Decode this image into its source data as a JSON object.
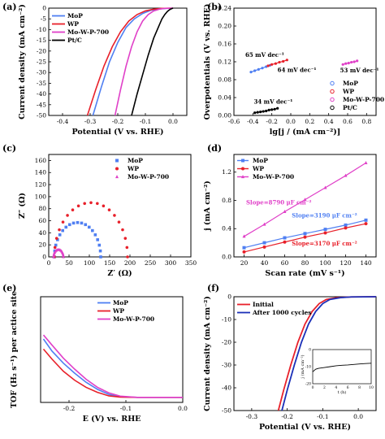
{
  "figure": {
    "panels": [
      {
        "label": "(a)"
      },
      {
        "label": "(b)"
      },
      {
        "label": "(c)"
      },
      {
        "label": "(d)"
      },
      {
        "label": "(e)"
      },
      {
        "label": "(f)"
      }
    ]
  },
  "chart_data": [
    {
      "id": "a",
      "type": "line",
      "xlabel": "Potential (V vs. RHE)",
      "ylabel": "Current density (mA cm⁻²)",
      "xlim": [
        -0.45,
        0.05
      ],
      "ylim": [
        -50,
        0
      ],
      "xticks": [
        "-0.4",
        "-0.3",
        "-0.2",
        "-0.1",
        "0.0"
      ],
      "yticks": [
        "0",
        "-5",
        "-10",
        "-15",
        "-20",
        "-25",
        "-30",
        "-35",
        "-40",
        "-45",
        "-50"
      ],
      "xtick_vals": [
        -0.4,
        -0.3,
        -0.2,
        -0.1,
        0.0
      ],
      "ytick_vals": [
        0,
        -5,
        -10,
        -15,
        -20,
        -25,
        -30,
        -35,
        -40,
        -45,
        -50
      ],
      "legend": "top-left",
      "series": [
        {
          "name": "MoP",
          "color": "#4f7ff2",
          "x": [
            -0.29,
            -0.26,
            -0.23,
            -0.2,
            -0.17,
            -0.14,
            -0.11,
            -0.08,
            -0.05,
            -0.02,
            0.0
          ],
          "y": [
            -50,
            -37,
            -25,
            -16,
            -9,
            -5,
            -2.5,
            -1,
            -0.4,
            -0.1,
            0
          ]
        },
        {
          "name": "WP",
          "color": "#e8202a",
          "x": [
            -0.31,
            -0.28,
            -0.25,
            -0.22,
            -0.19,
            -0.16,
            -0.13,
            -0.1,
            -0.07,
            -0.04,
            0.0
          ],
          "y": [
            -50,
            -38,
            -27,
            -18,
            -11,
            -6,
            -3,
            -1.3,
            -0.5,
            -0.1,
            0
          ]
        },
        {
          "name": "Mo-W-P-700",
          "color": "#e040c8",
          "x": [
            -0.21,
            -0.19,
            -0.17,
            -0.15,
            -0.13,
            -0.11,
            -0.09,
            -0.07,
            -0.05,
            -0.03,
            0.0
          ],
          "y": [
            -50,
            -38,
            -27,
            -18,
            -11,
            -6,
            -3,
            -1.3,
            -0.5,
            -0.1,
            0
          ]
        },
        {
          "name": "Pt/C",
          "color": "#000000",
          "x": [
            -0.15,
            -0.13,
            -0.11,
            -0.09,
            -0.07,
            -0.05,
            -0.04,
            -0.03,
            -0.02,
            -0.01,
            0.0
          ],
          "y": [
            -50,
            -40,
            -31,
            -22,
            -14,
            -8,
            -5,
            -3,
            -1.5,
            -0.5,
            0
          ]
        }
      ]
    },
    {
      "id": "b",
      "type": "scatter",
      "xlabel": "lg[j / (mA cm⁻²)]",
      "ylabel": "Overpotentials (V vs. RHE)",
      "xlim": [
        -0.6,
        0.9
      ],
      "ylim": [
        0.0,
        0.24
      ],
      "xticks": [
        "-0.6",
        "-0.4",
        "-0.2",
        "0.0",
        "0.2",
        "0.4",
        "0.6",
        "0.8"
      ],
      "yticks": [
        "0.00",
        "0.04",
        "0.08",
        "0.12",
        "0.16",
        "0.20",
        "0.24"
      ],
      "xtick_vals": [
        -0.6,
        -0.4,
        -0.2,
        0.0,
        0.2,
        0.4,
        0.6,
        0.8
      ],
      "ytick_vals": [
        0.0,
        0.04,
        0.08,
        0.12,
        0.16,
        0.2,
        0.24
      ],
      "legend": "right",
      "series": [
        {
          "name": "MoP",
          "color": "#4f7ff2",
          "x": [
            -0.42,
            -0.38,
            -0.34,
            -0.3,
            -0.26,
            -0.22
          ],
          "y": [
            0.097,
            0.1,
            0.103,
            0.106,
            0.109,
            0.112
          ]
        },
        {
          "name": "WP",
          "color": "#e8202a",
          "x": [
            -0.24,
            -0.2,
            -0.16,
            -0.12,
            -0.08,
            -0.04
          ],
          "y": [
            0.111,
            0.114,
            0.116,
            0.119,
            0.121,
            0.124
          ]
        },
        {
          "name": "Mo-W-P-700",
          "color": "#e040c8",
          "x": [
            0.55,
            0.58,
            0.61,
            0.64,
            0.67,
            0.7
          ],
          "y": [
            0.114,
            0.116,
            0.117,
            0.119,
            0.12,
            0.122
          ]
        },
        {
          "name": "Pt/C",
          "color": "#000000",
          "x": [
            -0.38,
            -0.35,
            -0.32,
            -0.29,
            -0.26,
            -0.23,
            -0.2,
            -0.17,
            -0.14
          ],
          "y": [
            0.006,
            0.007,
            0.008,
            0.009,
            0.01,
            0.012,
            0.013,
            0.014,
            0.016
          ]
        }
      ],
      "annotations": [
        {
          "text": "65 mV dec⁻¹",
          "x": -0.48,
          "y": 0.131
        },
        {
          "text": "64 mV dec⁻¹",
          "x": -0.14,
          "y": 0.097
        },
        {
          "text": "53 mV dec⁻¹",
          "x": 0.52,
          "y": 0.096
        },
        {
          "text": "34 mV dec⁻¹",
          "x": -0.39,
          "y": 0.026
        }
      ]
    },
    {
      "id": "c",
      "type": "scatter",
      "xlabel": "Z′ (Ω)",
      "ylabel": "Z″ (Ω)",
      "xlim": [
        0,
        350
      ],
      "ylim": [
        0,
        170
      ],
      "xticks": [
        "0",
        "50",
        "100",
        "150",
        "200",
        "250",
        "300",
        "350"
      ],
      "yticks": [
        "0",
        "20",
        "40",
        "60",
        "80",
        "100",
        "120",
        "140",
        "160"
      ],
      "xtick_vals": [
        0,
        50,
        100,
        150,
        200,
        250,
        300,
        350
      ],
      "ytick_vals": [
        0,
        20,
        40,
        60,
        80,
        100,
        120,
        140,
        160
      ],
      "legend": "top-right",
      "series": [
        {
          "name": "MoP",
          "color": "#4f7ff2",
          "marker": "square",
          "center": 71,
          "radius": 57
        },
        {
          "name": "WP",
          "color": "#e8202a",
          "marker": "circle",
          "center": 104,
          "radius": 90
        },
        {
          "name": "Mo-W-P-700",
          "color": "#e040c8",
          "marker": "triangle",
          "center": 24,
          "radius": 12
        }
      ]
    },
    {
      "id": "d",
      "type": "line",
      "xlabel": "Scan rate (mV s⁻¹)",
      "ylabel": "j (mA cm⁻²)",
      "xlim": [
        10,
        150
      ],
      "ylim": [
        0.0,
        1.45
      ],
      "xticks": [
        "20",
        "40",
        "60",
        "80",
        "100",
        "120",
        "140"
      ],
      "yticks": [
        "0.0",
        "0.4",
        "0.8",
        "1.2"
      ],
      "xtick_vals": [
        20,
        40,
        60,
        80,
        100,
        120,
        140
      ],
      "ytick_vals": [
        0.0,
        0.4,
        0.8,
        1.2
      ],
      "legend": "top-left",
      "series": [
        {
          "name": "MoP",
          "color": "#4f7ff2",
          "marker": "square",
          "x": [
            20,
            40,
            60,
            80,
            100,
            120,
            140
          ],
          "y": [
            0.13,
            0.2,
            0.27,
            0.33,
            0.39,
            0.45,
            0.52
          ]
        },
        {
          "name": "WP",
          "color": "#e8202a",
          "marker": "circle",
          "x": [
            20,
            40,
            60,
            80,
            100,
            120,
            140
          ],
          "y": [
            0.07,
            0.14,
            0.21,
            0.28,
            0.34,
            0.41,
            0.47
          ]
        },
        {
          "name": "Mo-W-P-700",
          "color": "#e040c8",
          "marker": "triangle",
          "x": [
            20,
            40,
            60,
            80,
            100,
            120,
            140
          ],
          "y": [
            0.29,
            0.46,
            0.64,
            0.81,
            0.98,
            1.15,
            1.33
          ]
        }
      ],
      "annotations": [
        {
          "text": "Slope=8790 μF cm⁻²",
          "x": 22,
          "y": 0.74,
          "color": "#e040c8"
        },
        {
          "text": "Slope=3190 μF cm⁻²",
          "x": 67,
          "y": 0.56,
          "color": "#4f7ff2"
        },
        {
          "text": "Slope=3170 μF cm⁻²",
          "x": 67,
          "y": 0.16,
          "color": "#e8202a"
        }
      ]
    },
    {
      "id": "e",
      "type": "line",
      "xlabel": "E (V) vs. RHE",
      "ylabel": "TOF (H₂ s⁻¹) per actice site",
      "xlim": [
        -0.25,
        0.0
      ],
      "ylim": [
        -0.05,
        1.0
      ],
      "xticks": [
        "-0.2",
        "-0.1",
        "0.0"
      ],
      "yticks": [],
      "xtick_vals": [
        -0.2,
        -0.1,
        0.0
      ],
      "ytick_vals": [],
      "legend": "top-right",
      "series": [
        {
          "name": "MoP",
          "color": "#4f7ff2",
          "x": [
            -0.245,
            -0.23,
            -0.21,
            -0.19,
            -0.17,
            -0.15,
            -0.13,
            -0.11,
            -0.08,
            -0.04,
            0.0
          ],
          "y": [
            0.58,
            0.46,
            0.34,
            0.24,
            0.15,
            0.08,
            0.03,
            0.005,
            0,
            0,
            0
          ]
        },
        {
          "name": "WP",
          "color": "#e8202a",
          "x": [
            -0.245,
            -0.23,
            -0.21,
            -0.19,
            -0.17,
            -0.15,
            -0.13,
            -0.11,
            -0.08,
            -0.04,
            0.0
          ],
          "y": [
            0.48,
            0.38,
            0.26,
            0.17,
            0.1,
            0.05,
            0.015,
            0.003,
            0,
            0,
            0
          ]
        },
        {
          "name": "Mo-W-P-700",
          "color": "#e040c8",
          "x": [
            -0.245,
            -0.23,
            -0.21,
            -0.19,
            -0.17,
            -0.15,
            -0.13,
            -0.11,
            -0.08,
            -0.04,
            0.0
          ],
          "y": [
            0.62,
            0.52,
            0.39,
            0.28,
            0.18,
            0.1,
            0.045,
            0.012,
            0,
            0,
            0
          ]
        }
      ]
    },
    {
      "id": "f",
      "type": "line",
      "xlabel": "Potential (V vs. RHE)",
      "ylabel": "Current density (mA cm⁻²)",
      "xlim": [
        -0.35,
        0.05
      ],
      "ylim": [
        -50,
        0
      ],
      "xticks": [
        "-0.3",
        "-0.2",
        "-0.1",
        "0.0"
      ],
      "yticks": [
        "0",
        "-10",
        "-20",
        "-30",
        "-40",
        "-50"
      ],
      "xtick_vals": [
        -0.3,
        -0.2,
        -0.1,
        0.0
      ],
      "ytick_vals": [
        0,
        -10,
        -20,
        -30,
        -40,
        -50
      ],
      "legend": "top-left",
      "series": [
        {
          "name": "Initial",
          "color": "#e8202a",
          "x": [
            -0.225,
            -0.21,
            -0.19,
            -0.17,
            -0.15,
            -0.13,
            -0.11,
            -0.09,
            -0.06,
            -0.02,
            0.05
          ],
          "y": [
            -50,
            -41,
            -30,
            -20,
            -12,
            -6.5,
            -3,
            -1.2,
            -0.4,
            -0.1,
            0
          ]
        },
        {
          "name": "After 1000 cycles",
          "color": "#1a2fb8",
          "x": [
            -0.215,
            -0.2,
            -0.18,
            -0.16,
            -0.14,
            -0.12,
            -0.1,
            -0.08,
            -0.05,
            -0.02,
            0.05
          ],
          "y": [
            -50,
            -41,
            -30,
            -20,
            -12,
            -6.5,
            -3,
            -1.2,
            -0.4,
            -0.1,
            0
          ]
        }
      ],
      "inset": {
        "type": "line",
        "xlabel": "t (h)",
        "ylabel": "j (mA cm⁻²)",
        "xlim": [
          0,
          10
        ],
        "ylim": [
          -20,
          0
        ],
        "xticks": [
          "0",
          "2",
          "4",
          "6",
          "8",
          "10"
        ],
        "yticks": [
          "0",
          "-10",
          "-20"
        ],
        "xtick_vals": [
          0,
          2,
          4,
          6,
          8,
          10
        ],
        "ytick_vals": [
          0,
          -10,
          -20
        ],
        "series": [
          {
            "name": "",
            "color": "#000000",
            "x": [
              0,
              0.5,
              1,
              2,
              3,
              4,
              5,
              6,
              7,
              8,
              9,
              10
            ],
            "y": [
              -13,
              -11.5,
              -11,
              -10.5,
              -10,
              -9.5,
              -9.2,
              -9,
              -8.7,
              -8.4,
              -8.2,
              -8
            ]
          }
        ]
      }
    }
  ]
}
